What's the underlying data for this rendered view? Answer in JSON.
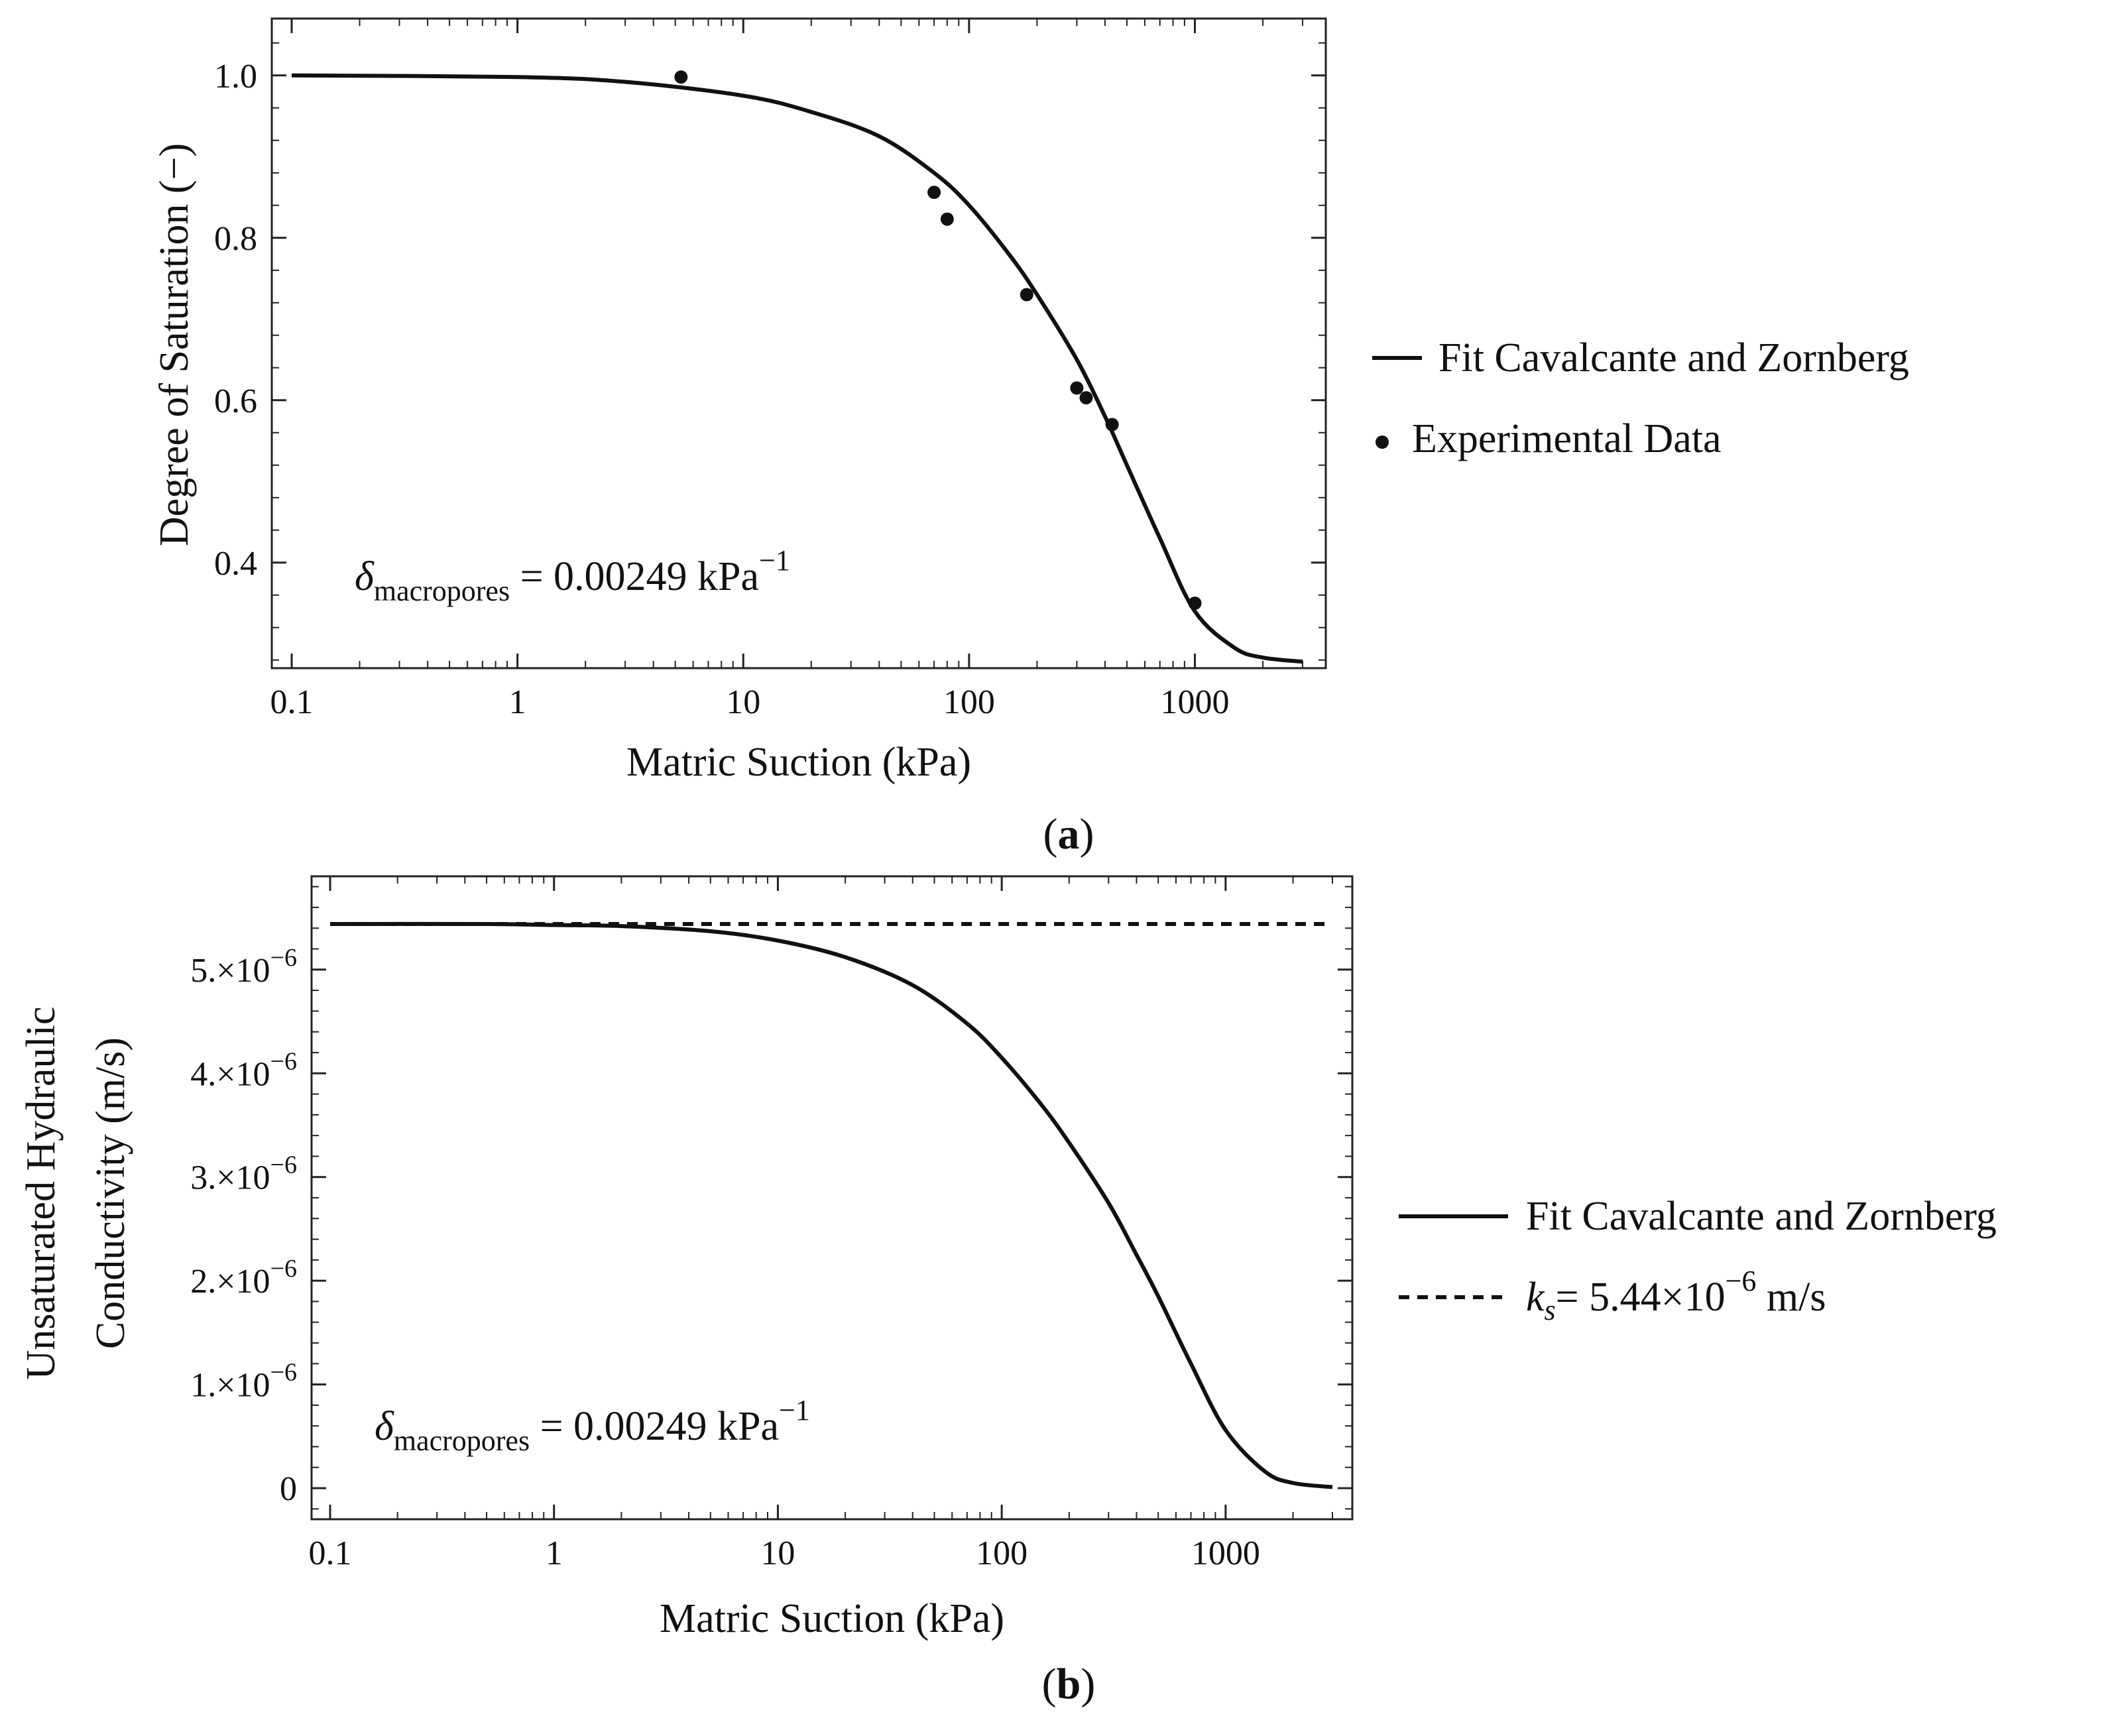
{
  "chart_data": [
    {
      "id": "a",
      "panel_label": "a",
      "type": "line",
      "xlabel": "Matric Suction (kPa)",
      "ylabel": "Degree of Saturation (−)",
      "xscale": "log",
      "xlim": [
        0.1,
        3000
      ],
      "ylim": [
        0.27,
        1.07
      ],
      "xticks": [
        0.1,
        1,
        10,
        100,
        1000
      ],
      "xtick_labels": [
        "0.1",
        "1",
        "10",
        "100",
        "1000"
      ],
      "yticks": [
        0.4,
        0.6,
        0.8,
        1.0
      ],
      "ytick_labels": [
        "0.4",
        "0.6",
        "0.8",
        "1.0"
      ],
      "annotation": {
        "symbol": "δ",
        "subscript": "macropores",
        "text": " = 0.00249 kPa",
        "superscript": "−1"
      },
      "legend_position": "right",
      "series": [
        {
          "name": "Fit Cavalcante and Zornberg",
          "style": "solid",
          "x": [
            0.1,
            1,
            3,
            10,
            20,
            40,
            70,
            100,
            150,
            200,
            300,
            400,
            500,
            700,
            1000,
            1500,
            2000,
            3000
          ],
          "y": [
            1.0,
            0.998,
            0.992,
            0.975,
            0.955,
            0.925,
            0.88,
            0.84,
            0.78,
            0.73,
            0.65,
            0.58,
            0.52,
            0.43,
            0.34,
            0.295,
            0.283,
            0.278
          ]
        },
        {
          "name": "Experimental Data",
          "style": "points",
          "x": [
            5.3,
            70,
            80,
            180,
            300,
            330,
            430,
            1000
          ],
          "y": [
            0.998,
            0.856,
            0.823,
            0.73,
            0.615,
            0.603,
            0.57,
            0.35
          ]
        }
      ]
    },
    {
      "id": "b",
      "panel_label": "b",
      "type": "line",
      "xlabel": "Matric Suction (kPa)",
      "ylabel_lines": [
        "Unsaturated Hydraulic",
        "Conductivity (m/s)"
      ],
      "xscale": "log",
      "xlim": [
        0.1,
        3000
      ],
      "ylim": [
        -3e-07,
        5.9e-06
      ],
      "xticks": [
        0.1,
        1,
        10,
        100,
        1000
      ],
      "xtick_labels": [
        "0.1",
        "1",
        "10",
        "100",
        "1000"
      ],
      "yticks": [
        0,
        1e-06,
        2e-06,
        3e-06,
        4e-06,
        5e-06
      ],
      "ytick_labels": [
        {
          "mant": "0",
          "exp": ""
        },
        {
          "mant": "1.×10",
          "exp": "−6"
        },
        {
          "mant": "2.×10",
          "exp": "−6"
        },
        {
          "mant": "3.×10",
          "exp": "−6"
        },
        {
          "mant": "4.×10",
          "exp": "−6"
        },
        {
          "mant": "5.×10",
          "exp": "−6"
        }
      ],
      "annotation": {
        "symbol": "δ",
        "subscript": "macropores",
        "text": " = 0.00249 kPa",
        "superscript": "−1"
      },
      "legend_position": "right",
      "series": [
        {
          "name": "Fit Cavalcante and Zornberg",
          "style": "solid",
          "x": [
            0.1,
            0.5,
            1,
            2,
            5,
            10,
            20,
            40,
            70,
            100,
            150,
            200,
            300,
            400,
            500,
            700,
            1000,
            1500,
            2000,
            3000
          ],
          "y": [
            5.44e-06,
            5.44e-06,
            5.43e-06,
            5.42e-06,
            5.37e-06,
            5.28e-06,
            5.12e-06,
            4.85e-06,
            4.48e-06,
            4.15e-06,
            3.7e-06,
            3.33e-06,
            2.75e-06,
            2.25e-06,
            1.85e-06,
            1.2e-06,
            5.6e-07,
            1.6e-07,
            5e-08,
            1e-08
          ]
        },
        {
          "name": "k_s = 5.44×10⁻⁶ m/s",
          "style": "dashed",
          "x": [
            0.1,
            3000
          ],
          "y": [
            5.44e-06,
            5.44e-06
          ]
        }
      ],
      "legend_dashed": {
        "k": "k",
        "s": "s",
        "text": "= 5.44×10",
        "exp": "−6",
        "unit": " m/s"
      }
    }
  ]
}
